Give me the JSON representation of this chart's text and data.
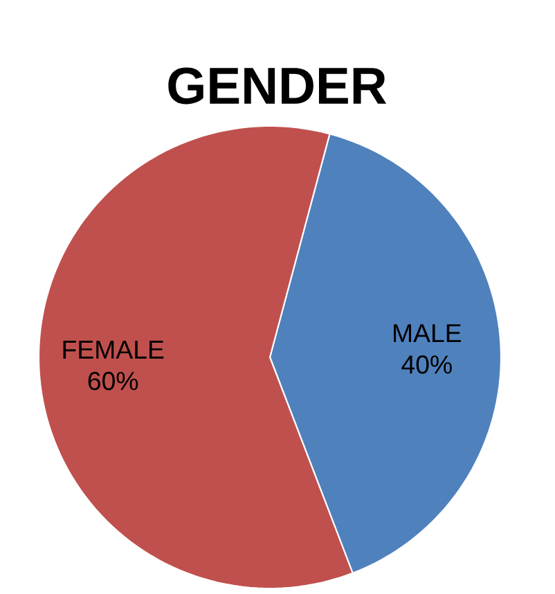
{
  "chart_data": {
    "type": "pie",
    "title": "GENDER",
    "categories": [
      "MALE",
      "FEMALE"
    ],
    "values": [
      40,
      60
    ],
    "colors": [
      "#4f81bd",
      "#c0504d"
    ],
    "value_labels": [
      "40%",
      "60%"
    ]
  }
}
